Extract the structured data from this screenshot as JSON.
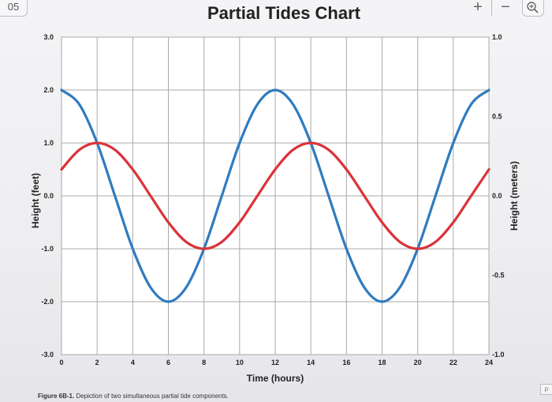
{
  "viewer": {
    "page_tab": "05",
    "zoom_in_icon": "+",
    "zoom_out_icon": "−",
    "corner_tag": "p"
  },
  "caption": {
    "label": "Figure 6B-1.",
    "text": "Depiction of two simultaneous partial tide components."
  },
  "chart_data": {
    "type": "line",
    "title": "Partial Tides Chart",
    "xlabel": "Time (hours)",
    "ylabel": "Height (feet)",
    "y2label": "Height (meters)",
    "xlim": [
      0,
      24
    ],
    "ylim": [
      -3.0,
      3.0
    ],
    "y2lim": [
      -1.0,
      1.0
    ],
    "x_ticks": [
      0,
      2,
      4,
      6,
      8,
      10,
      12,
      14,
      16,
      18,
      20,
      22,
      24
    ],
    "x_tick_labels": [
      "0",
      "2",
      "4",
      "6",
      "8",
      "10",
      "12",
      "14",
      "16",
      "18",
      "20",
      "22",
      "24"
    ],
    "y_ticks": [
      3.0,
      2.0,
      1.0,
      0.0,
      -1.0,
      -2.0,
      -3.0
    ],
    "y_tick_labels": [
      "3.0",
      "2.0",
      "1.0",
      "0.0",
      "-1.0",
      "-2.0",
      "-3.0"
    ],
    "y2_ticks": [
      1.0,
      0.5,
      0.0,
      -0.5,
      -1.0
    ],
    "y2_tick_labels": [
      "1.0",
      "0.5",
      "0.0",
      "-0.5",
      "-1.0"
    ],
    "grid": true,
    "series": [
      {
        "color": "#2f7bbf",
        "x": [
          0,
          1,
          2,
          3,
          4,
          5,
          6,
          7,
          8,
          9,
          10,
          11,
          12,
          13,
          14,
          15,
          16,
          17,
          18,
          19,
          20,
          21,
          22,
          23,
          24
        ],
        "y": [
          2.0,
          1.73,
          1.0,
          0.0,
          -1.0,
          -1.73,
          -2.0,
          -1.73,
          -1.0,
          0.0,
          1.0,
          1.73,
          2.0,
          1.73,
          1.0,
          0.0,
          -1.0,
          -1.73,
          -2.0,
          -1.73,
          -1.0,
          0.0,
          1.0,
          1.73,
          2.0
        ]
      },
      {
        "color": "#d9343a",
        "x": [
          0,
          1,
          2,
          3,
          4,
          5,
          6,
          7,
          8,
          9,
          10,
          11,
          12,
          13,
          14,
          15,
          16,
          17,
          18,
          19,
          20,
          21,
          22,
          23,
          24
        ],
        "y": [
          0.5,
          0.87,
          1.0,
          0.87,
          0.5,
          0.0,
          -0.5,
          -0.87,
          -1.0,
          -0.87,
          -0.5,
          0.0,
          0.5,
          0.87,
          1.0,
          0.87,
          0.5,
          0.0,
          -0.5,
          -0.87,
          -1.0,
          -0.87,
          -0.5,
          0.0,
          0.5
        ]
      }
    ]
  }
}
